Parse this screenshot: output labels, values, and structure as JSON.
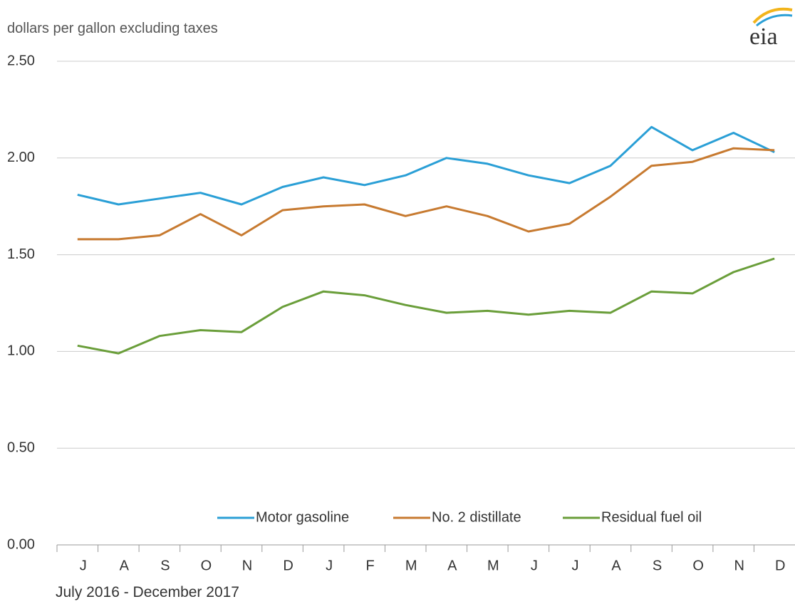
{
  "chart_data": {
    "type": "line",
    "logo": "eia",
    "y_label": "dollars per gallon excluding taxes",
    "x_label": "July 2016  -  December 2017",
    "categories": [
      "J",
      "A",
      "S",
      "O",
      "N",
      "D",
      "J",
      "F",
      "M",
      "A",
      "M",
      "J",
      "J",
      "A",
      "S",
      "O",
      "N",
      "D"
    ],
    "series": [
      {
        "name": "Motor gasoline",
        "color": "#2a9fd6",
        "values": [
          1.81,
          1.76,
          1.79,
          1.82,
          1.76,
          1.85,
          1.9,
          1.86,
          1.91,
          2.0,
          1.97,
          1.91,
          1.87,
          1.96,
          2.16,
          2.04,
          2.13,
          2.03
        ]
      },
      {
        "name": "No. 2 distillate",
        "color": "#c77a30",
        "values": [
          1.58,
          1.58,
          1.6,
          1.71,
          1.6,
          1.73,
          1.75,
          1.76,
          1.7,
          1.75,
          1.7,
          1.62,
          1.66,
          1.8,
          1.96,
          1.98,
          2.05,
          2.04
        ]
      },
      {
        "name": "Residual fuel oil",
        "color": "#6a9e3a",
        "values": [
          1.03,
          0.99,
          1.08,
          1.11,
          1.1,
          1.23,
          1.31,
          1.29,
          1.24,
          1.2,
          1.21,
          1.19,
          1.21,
          1.2,
          1.31,
          1.3,
          1.41,
          1.48
        ]
      }
    ],
    "ylim": [
      0,
      2.5
    ],
    "yticks": [
      {
        "value": 0,
        "label": "0.00"
      },
      {
        "value": 0.5,
        "label": "0.50"
      },
      {
        "value": 1,
        "label": "1.00"
      },
      {
        "value": 1.5,
        "label": "1.50"
      },
      {
        "value": 2,
        "label": "2.00"
      },
      {
        "value": 2.5,
        "label": "2.50"
      }
    ],
    "grid": true
  }
}
